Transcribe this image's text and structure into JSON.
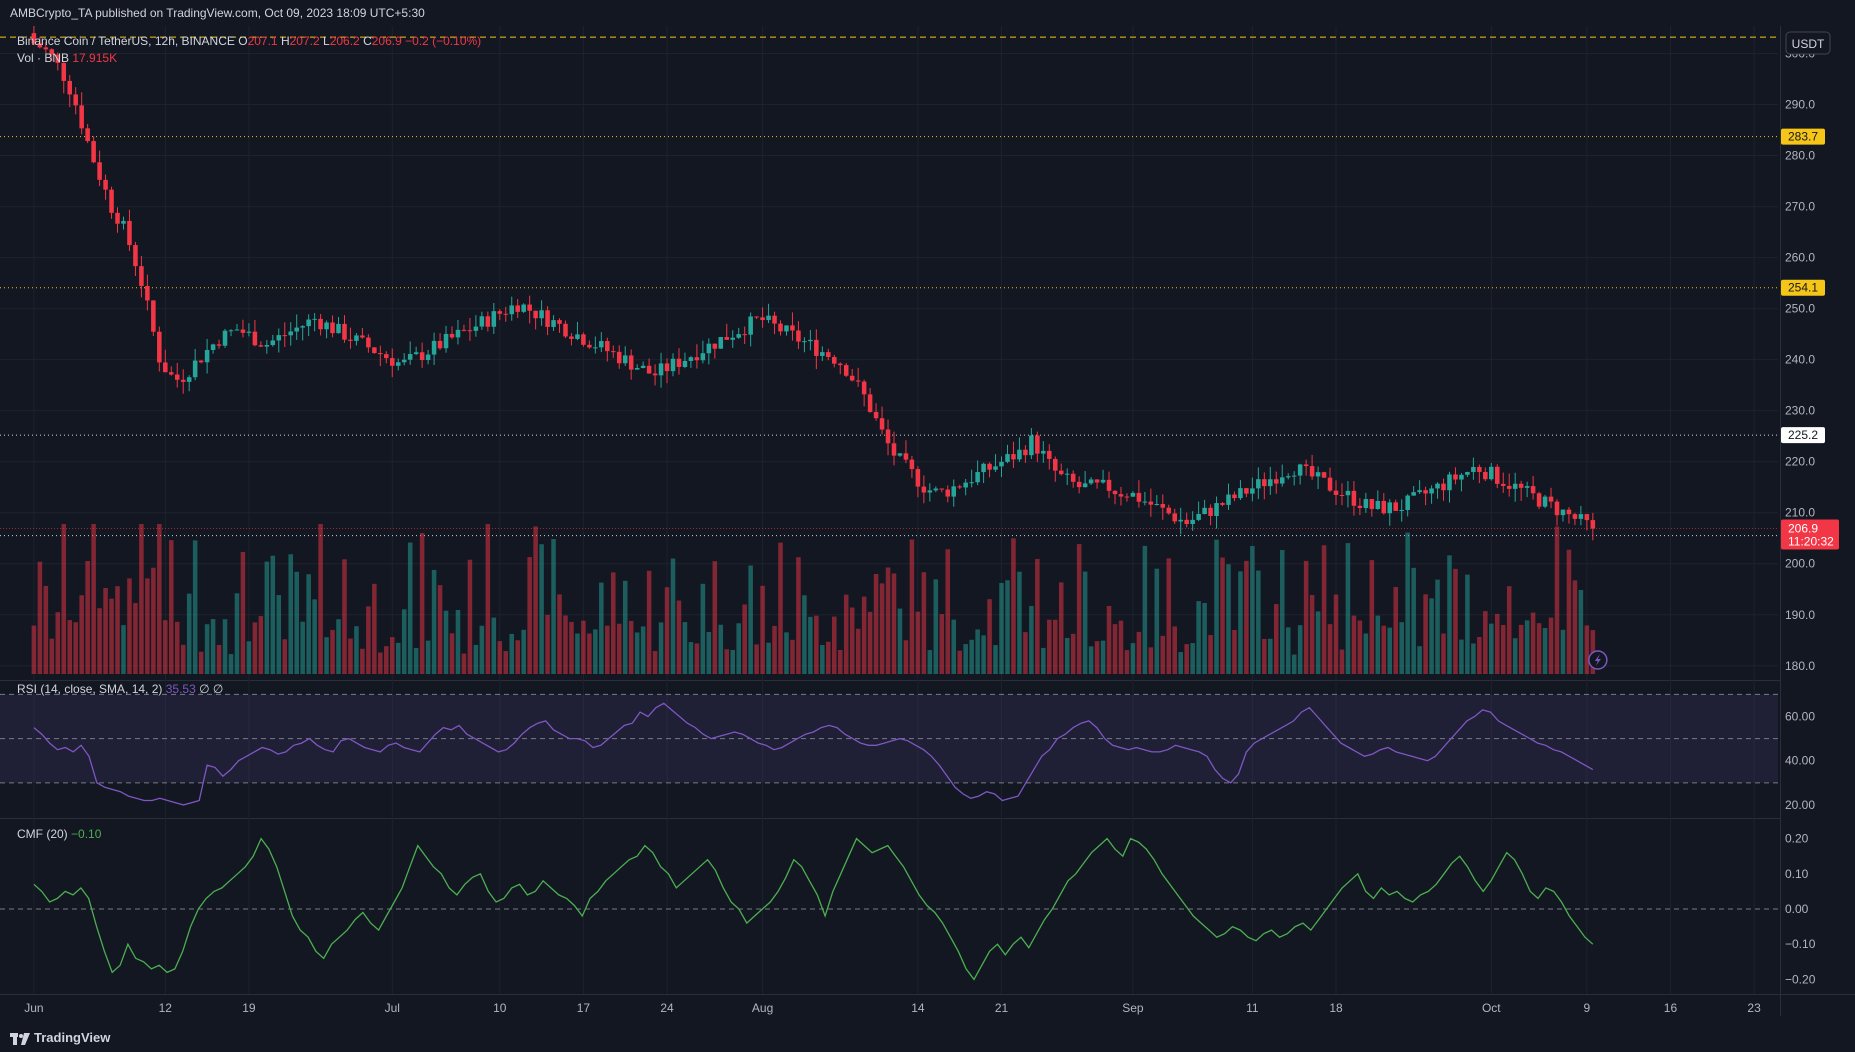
{
  "header": {
    "published": "AMBCrypto_TA published on TradingView.com, Oct 09, 2023 18:09 UTC+5:30"
  },
  "main_legend": {
    "symbol": "Binance Coin / TetherUS, 12h, BINANCE",
    "o_label": "O",
    "o": "207.1",
    "h_label": "H",
    "h": "207.2",
    "l_label": "L",
    "l": "206.2",
    "c_label": "C",
    "c": "206.9",
    "change": "−0.2 (−0.10%)"
  },
  "vol_legend": {
    "label": "Vol · BNB",
    "value": "17.915K"
  },
  "rsi_legend": {
    "label": "RSI (14, close, SMA, 14, 2)",
    "value": "35.53",
    "extra": "∅ ∅"
  },
  "cmf_legend": {
    "label": "CMF (20)",
    "value": "−0.10"
  },
  "footer": {
    "brand": "TradingView"
  },
  "colors": {
    "up": "#26a69a",
    "down": "#f23645",
    "rsi": "#7e57c2",
    "cmf": "#4caf50",
    "level_yellow": "#f5c518",
    "level_white": "#d1d4dc"
  },
  "chart_data": [
    {
      "type": "candlestick",
      "title": "Binance Coin / TetherUS, 12h, BINANCE",
      "currency": "USDT",
      "ylim": [
        178,
        305
      ],
      "y_ticks": [
        180,
        190,
        200,
        210,
        220,
        230,
        240,
        250,
        260,
        270,
        280,
        290,
        300
      ],
      "y_tick_labels": [
        "180.0",
        "190.0",
        "200.0",
        "210.0",
        "220.0",
        "230.0",
        "240.0",
        "250.0",
        "260.0",
        "270.0",
        "280.0",
        "290.0",
        "300.0"
      ],
      "x_ticks": [
        "Jun",
        "12",
        "19",
        "Jul",
        "10",
        "17",
        "24",
        "Aug",
        "14",
        "21",
        "Sep",
        "11",
        "18",
        "Oct",
        "9",
        "16",
        "23"
      ],
      "x_tick_days": [
        0,
        11,
        18,
        30,
        39,
        46,
        53,
        61,
        74,
        81,
        92,
        102,
        109,
        122,
        130,
        137,
        144
      ],
      "last_candle_day": 130.5,
      "x_range_days": [
        -2,
        146
      ],
      "last_price": "206.9",
      "countdown": "11:20:32",
      "horizontal_levels": [
        {
          "value": 303.2,
          "label": "",
          "style": "dashed",
          "color": "yellow"
        },
        {
          "value": 283.7,
          "label": "283.7",
          "style": "dotted",
          "color": "yellow"
        },
        {
          "value": 254.1,
          "label": "254.1",
          "style": "dotted",
          "color": "yellow"
        },
        {
          "value": 225.2,
          "label": "225.2",
          "style": "dotted",
          "color": "white"
        },
        {
          "value": 205.5,
          "label": "205.5",
          "style": "dotted",
          "color": "white"
        }
      ],
      "close_path": [
        302,
        301,
        299,
        296,
        292,
        286,
        280,
        275,
        270,
        267,
        262,
        256,
        248,
        240,
        237,
        236,
        238,
        240,
        242,
        244,
        245,
        246,
        245,
        244,
        243,
        244,
        245,
        246,
        247,
        248,
        247,
        246,
        245,
        244,
        243,
        242,
        241,
        240,
        239,
        240,
        241,
        242,
        243,
        244,
        245,
        246,
        247,
        248,
        249,
        250,
        251,
        250,
        249,
        248,
        247,
        246,
        245,
        244,
        243,
        242,
        241,
        240,
        239,
        238,
        237,
        238,
        239,
        240,
        241,
        242,
        243,
        244,
        245,
        246,
        247,
        248,
        247,
        246,
        245,
        244,
        243,
        242,
        241,
        240,
        238,
        235,
        232,
        228,
        224,
        221,
        219,
        217,
        215,
        214,
        214,
        215,
        216,
        217,
        218,
        219,
        220,
        221,
        222,
        224,
        222,
        219,
        217,
        216,
        215,
        215,
        215,
        215,
        214,
        214,
        213,
        212,
        211,
        210,
        209,
        208,
        209,
        210,
        211,
        212,
        213,
        214,
        215,
        216,
        217,
        218,
        219,
        218,
        217,
        216,
        215,
        214,
        213,
        212,
        211,
        211,
        211,
        211,
        212,
        213,
        214,
        215,
        216,
        217,
        218,
        219,
        218,
        217,
        216,
        215,
        214,
        213,
        212,
        211,
        210,
        209,
        208,
        207
      ]
    },
    {
      "type": "bar",
      "title": "Vol · BNB",
      "last_value": "17.915K",
      "colored_by_candle": true
    },
    {
      "type": "line",
      "title": "RSI (14, close, SMA, 14, 2)",
      "ylim": [
        15,
        72
      ],
      "y_ticks": [
        20,
        40,
        60
      ],
      "y_tick_labels": [
        "20.00",
        "40.00",
        "60.00"
      ],
      "bands": [
        30,
        50,
        70
      ],
      "last_value": 35.53,
      "values": [
        55,
        52,
        48,
        45,
        46,
        44,
        47,
        42,
        30,
        28,
        27,
        26,
        24,
        23,
        22,
        22,
        23,
        22,
        21,
        20,
        21,
        22,
        38,
        37,
        33,
        36,
        40,
        42,
        44,
        46,
        45,
        43,
        44,
        47,
        48,
        50,
        47,
        45,
        44,
        49,
        50,
        48,
        46,
        45,
        44,
        47,
        48,
        46,
        45,
        44,
        48,
        52,
        55,
        54,
        56,
        52,
        50,
        48,
        46,
        44,
        45,
        48,
        52,
        55,
        57,
        58,
        54,
        52,
        50,
        50,
        49,
        46,
        47,
        50,
        53,
        56,
        57,
        62,
        60,
        64,
        66,
        63,
        60,
        57,
        55,
        52,
        50,
        51,
        52,
        53,
        52,
        50,
        48,
        47,
        45,
        46,
        48,
        50,
        52,
        53,
        55,
        56,
        55,
        52,
        50,
        48,
        47,
        47,
        48,
        49,
        50,
        49,
        47,
        45,
        42,
        38,
        33,
        28,
        25,
        23,
        24,
        26,
        25,
        22,
        23,
        24,
        30,
        36,
        42,
        45,
        50,
        52,
        55,
        57,
        58,
        55,
        50,
        47,
        46,
        45,
        46,
        45,
        44,
        44,
        45,
        47,
        46,
        45,
        44,
        42,
        36,
        32,
        30,
        34,
        44,
        48,
        50,
        52,
        54,
        56,
        58,
        62,
        64,
        60,
        56,
        52,
        48,
        46,
        44,
        42,
        43,
        45,
        46,
        44,
        43,
        42,
        41,
        40,
        42,
        46,
        50,
        54,
        58,
        60,
        63,
        62,
        58,
        56,
        54,
        52,
        50,
        48,
        47,
        45,
        44,
        42,
        40,
        38,
        36
      ]
    },
    {
      "type": "line",
      "title": "CMF (20)",
      "ylim": [
        -0.23,
        0.23
      ],
      "y_ticks": [
        -0.2,
        -0.1,
        0,
        0.1,
        0.2
      ],
      "y_tick_labels": [
        "−0.20",
        "−0.10",
        "0.00",
        "0.10",
        "0.20"
      ],
      "last_value": -0.1,
      "values": [
        0.07,
        0.05,
        0.02,
        0.03,
        0.05,
        0.04,
        0.06,
        0.03,
        -0.05,
        -0.12,
        -0.18,
        -0.16,
        -0.1,
        -0.14,
        -0.15,
        -0.17,
        -0.16,
        -0.18,
        -0.17,
        -0.12,
        -0.05,
        0,
        0.03,
        0.05,
        0.06,
        0.08,
        0.1,
        0.12,
        0.15,
        0.2,
        0.17,
        0.12,
        0.05,
        -0.02,
        -0.06,
        -0.08,
        -0.12,
        -0.14,
        -0.1,
        -0.08,
        -0.06,
        -0.03,
        -0.01,
        -0.04,
        -0.06,
        -0.02,
        0.02,
        0.06,
        0.12,
        0.18,
        0.15,
        0.12,
        0.1,
        0.06,
        0.04,
        0.07,
        0.09,
        0.1,
        0.05,
        0.02,
        0.03,
        0.06,
        0.07,
        0.04,
        0.05,
        0.08,
        0.06,
        0.04,
        0.03,
        0.01,
        -0.02,
        0.03,
        0.05,
        0.08,
        0.1,
        0.12,
        0.14,
        0.15,
        0.18,
        0.16,
        0.12,
        0.1,
        0.06,
        0.08,
        0.1,
        0.12,
        0.14,
        0.11,
        0.06,
        0.02,
        0,
        -0.04,
        -0.02,
        0,
        0.02,
        0.05,
        0.09,
        0.14,
        0.12,
        0.08,
        0.04,
        -0.02,
        0.05,
        0.1,
        0.15,
        0.2,
        0.18,
        0.16,
        0.17,
        0.18,
        0.15,
        0.12,
        0.08,
        0.04,
        0.01,
        -0.01,
        -0.04,
        -0.08,
        -0.12,
        -0.17,
        -0.2,
        -0.16,
        -0.12,
        -0.1,
        -0.13,
        -0.1,
        -0.08,
        -0.11,
        -0.07,
        -0.03,
        0,
        0.04,
        0.08,
        0.1,
        0.13,
        0.16,
        0.18,
        0.2,
        0.17,
        0.15,
        0.2,
        0.19,
        0.17,
        0.14,
        0.1,
        0.07,
        0.04,
        0.01,
        -0.02,
        -0.04,
        -0.06,
        -0.08,
        -0.07,
        -0.05,
        -0.06,
        -0.08,
        -0.09,
        -0.07,
        -0.06,
        -0.08,
        -0.07,
        -0.05,
        -0.04,
        -0.06,
        -0.03,
        0,
        0.03,
        0.06,
        0.08,
        0.1,
        0.05,
        0.03,
        0.06,
        0.04,
        0.05,
        0.03,
        0.02,
        0.04,
        0.05,
        0.07,
        0.1,
        0.13,
        0.15,
        0.12,
        0.08,
        0.05,
        0.08,
        0.12,
        0.16,
        0.14,
        0.1,
        0.05,
        0.03,
        0.06,
        0.05,
        0.02,
        -0.02,
        -0.05,
        -0.08,
        -0.1
      ]
    }
  ]
}
